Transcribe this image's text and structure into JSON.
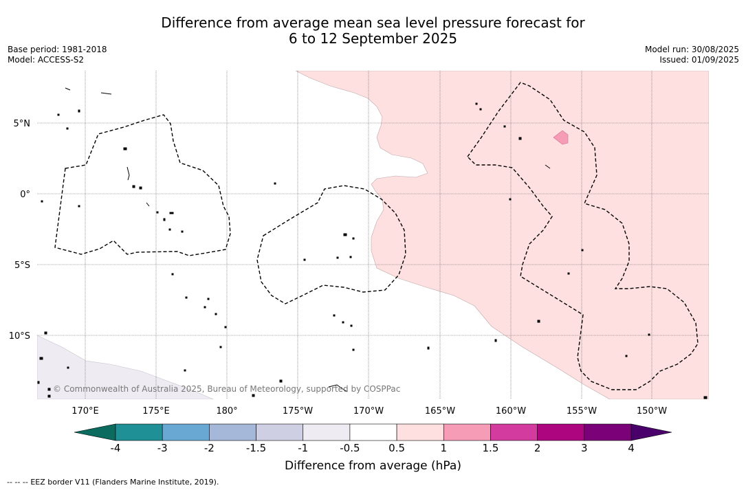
{
  "title": {
    "line1": "Difference from average mean sea level pressure forecast for",
    "line2": "6 to 12 September 2025"
  },
  "meta": {
    "base_period": "Base period: 1981-2018",
    "model": "Model: ACCESS-S2",
    "model_run": "Model run: 30/08/2025",
    "issued": "Issued: 01/09/2025"
  },
  "map": {
    "lat_labels": [
      "5°N",
      "0°",
      "5°S",
      "10°S"
    ],
    "lon_labels": [
      "170°E",
      "175°E",
      "180°",
      "175°W",
      "170°W",
      "165°W",
      "160°W",
      "155°W",
      "150°W"
    ],
    "copyright": "© Commonwealth of Australia 2025, Bureau of Meteorology, supported by COSPPac",
    "legend_note": "EEZ border V11 (Flanders Marine Institute, 2019).",
    "legend_note_dashes": "-- -- --"
  },
  "colorbar": {
    "label": "Difference from average (hPa)",
    "ticks": [
      "-4",
      "-3",
      "-2",
      "-1.5",
      "-1",
      "-0.5",
      "0.5",
      "1",
      "1.5",
      "2",
      "3",
      "4"
    ],
    "colors": [
      "#0b6b5e",
      "#1f9095",
      "#68a8d2",
      "#a6b8da",
      "#cfcfe4",
      "#efebf3",
      "#ffffff",
      "#fde0df",
      "#f79cb6",
      "#d33c9e",
      "#ad0480",
      "#7a0177",
      "#49006a"
    ]
  },
  "colors": {
    "positive_fill": "#fde0df",
    "strong_positive_fill": "#f79cb6",
    "negative_fill": "#efebf3"
  }
}
